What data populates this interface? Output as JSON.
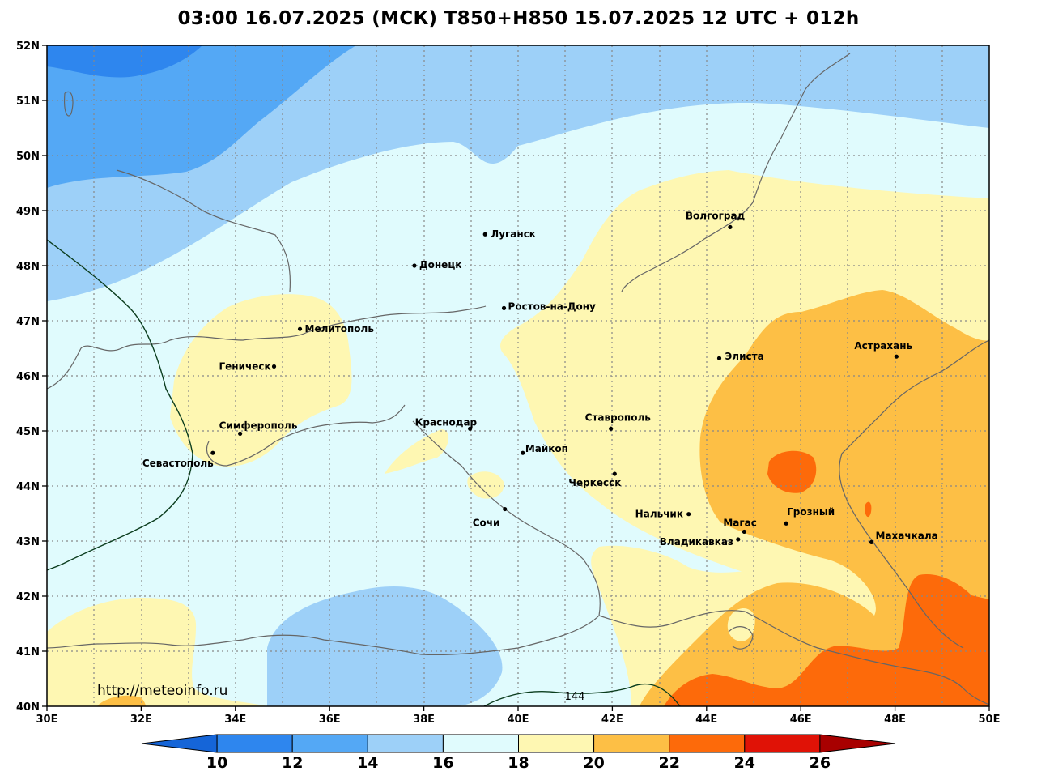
{
  "title": "03:00 16.07.2025 (МСК) T850+H850 15.07.2025 12 UTC + 012h",
  "source_url": "http://meteoinfo.ru",
  "axes": {
    "lon_labels": [
      "30E",
      "32E",
      "34E",
      "36E",
      "38E",
      "40E",
      "42E",
      "44E",
      "46E",
      "48E",
      "50E"
    ],
    "lat_labels": [
      "52N",
      "51N",
      "50N",
      "49N",
      "48N",
      "47N",
      "46N",
      "45N",
      "44N",
      "43N",
      "42N",
      "41N",
      "40N"
    ]
  },
  "colorbar": {
    "ticks": [
      "10",
      "12",
      "14",
      "16",
      "18",
      "20",
      "22",
      "24",
      "26"
    ],
    "colors": [
      "#1565d8",
      "#2e86ee",
      "#54a8f5",
      "#9dd0f8",
      "#e0fbfd",
      "#fef7b2",
      "#fdbf45",
      "#fd6a0a",
      "#e01206",
      "#a80000"
    ]
  },
  "contour_label": "144",
  "cities": [
    {
      "name": "Волгоград",
      "lon": 44.5,
      "lat": 48.7
    },
    {
      "name": "Луганск",
      "lon": 39.3,
      "lat": 48.57
    },
    {
      "name": "Донецк",
      "lon": 37.8,
      "lat": 48.0
    },
    {
      "name": "Ростов-на-Дону",
      "lon": 39.7,
      "lat": 47.23
    },
    {
      "name": "Мелитополь",
      "lon": 35.37,
      "lat": 46.85
    },
    {
      "name": "Элиста",
      "lon": 44.27,
      "lat": 46.32
    },
    {
      "name": "Астрахань",
      "lon": 48.03,
      "lat": 46.35
    },
    {
      "name": "Геническ",
      "lon": 34.82,
      "lat": 46.17
    },
    {
      "name": "Краснодар",
      "lon": 38.98,
      "lat": 45.04
    },
    {
      "name": "Ставрополь",
      "lon": 41.97,
      "lat": 45.04
    },
    {
      "name": "Симферополь",
      "lon": 34.1,
      "lat": 44.95
    },
    {
      "name": "Майкоп",
      "lon": 40.1,
      "lat": 44.6
    },
    {
      "name": "Севастополь",
      "lon": 33.52,
      "lat": 44.6
    },
    {
      "name": "Черкесск",
      "lon": 42.05,
      "lat": 44.22
    },
    {
      "name": "Нальчик",
      "lon": 43.62,
      "lat": 43.49
    },
    {
      "name": "Сочи",
      "lon": 39.72,
      "lat": 43.58
    },
    {
      "name": "Грозный",
      "lon": 45.69,
      "lat": 43.32
    },
    {
      "name": "Магас",
      "lon": 44.8,
      "lat": 43.17
    },
    {
      "name": "Махачкала",
      "lon": 47.5,
      "lat": 42.98
    },
    {
      "name": "Владикавказ",
      "lon": 44.67,
      "lat": 43.03
    }
  ]
}
